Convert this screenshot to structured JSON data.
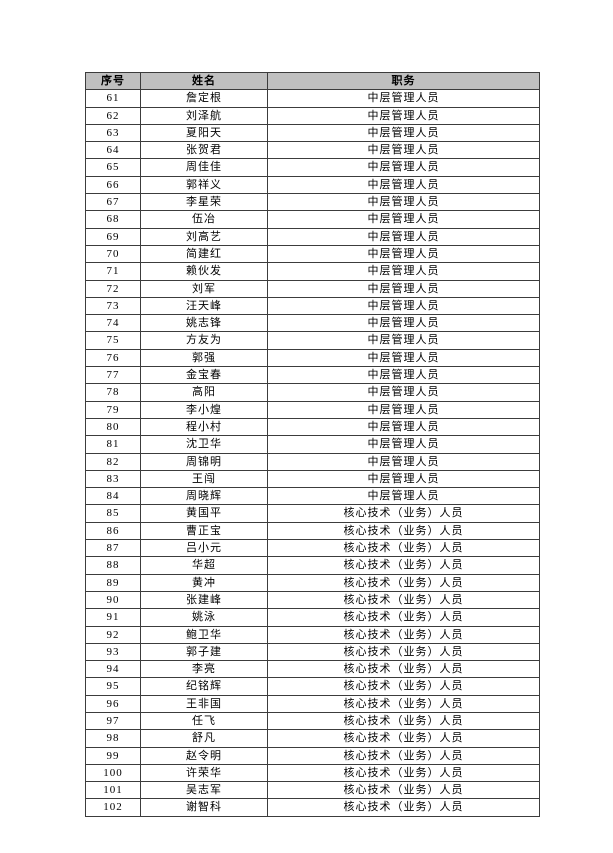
{
  "page": {
    "background": "#ffffff"
  },
  "table": {
    "header_bg": "#c0c0c0",
    "border_color": "#3c3c3c",
    "text_color": "#000000",
    "columns": [
      {
        "key": "serial",
        "label": "序号"
      },
      {
        "key": "name",
        "label": "姓名"
      },
      {
        "key": "title",
        "label": "职务"
      }
    ],
    "rows": [
      [
        "61",
        "詹定根",
        "中层管理人员"
      ],
      [
        "62",
        "刘泽航",
        "中层管理人员"
      ],
      [
        "63",
        "夏阳天",
        "中层管理人员"
      ],
      [
        "64",
        "张贺君",
        "中层管理人员"
      ],
      [
        "65",
        "周佳佳",
        "中层管理人员"
      ],
      [
        "66",
        "郭祥义",
        "中层管理人员"
      ],
      [
        "67",
        "李星荣",
        "中层管理人员"
      ],
      [
        "68",
        "伍冶",
        "中层管理人员"
      ],
      [
        "69",
        "刘高艺",
        "中层管理人员"
      ],
      [
        "70",
        "简建红",
        "中层管理人员"
      ],
      [
        "71",
        "赖伙发",
        "中层管理人员"
      ],
      [
        "72",
        "刘军",
        "中层管理人员"
      ],
      [
        "73",
        "汪天峰",
        "中层管理人员"
      ],
      [
        "74",
        "姚志锋",
        "中层管理人员"
      ],
      [
        "75",
        "方友为",
        "中层管理人员"
      ],
      [
        "76",
        "郭强",
        "中层管理人员"
      ],
      [
        "77",
        "金宝春",
        "中层管理人员"
      ],
      [
        "78",
        "高阳",
        "中层管理人员"
      ],
      [
        "79",
        "李小煌",
        "中层管理人员"
      ],
      [
        "80",
        "程小村",
        "中层管理人员"
      ],
      [
        "81",
        "沈卫华",
        "中层管理人员"
      ],
      [
        "82",
        "周锦明",
        "中层管理人员"
      ],
      [
        "83",
        "王闯",
        "中层管理人员"
      ],
      [
        "84",
        "周晓辉",
        "中层管理人员"
      ],
      [
        "85",
        "黄国平",
        "核心技术（业务）人员"
      ],
      [
        "86",
        "曹正宝",
        "核心技术（业务）人员"
      ],
      [
        "87",
        "吕小元",
        "核心技术（业务）人员"
      ],
      [
        "88",
        "华超",
        "核心技术（业务）人员"
      ],
      [
        "89",
        "黄冲",
        "核心技术（业务）人员"
      ],
      [
        "90",
        "张建峰",
        "核心技术（业务）人员"
      ],
      [
        "91",
        "姚泳",
        "核心技术（业务）人员"
      ],
      [
        "92",
        "鲍卫华",
        "核心技术（业务）人员"
      ],
      [
        "93",
        "郭子建",
        "核心技术（业务）人员"
      ],
      [
        "94",
        "李亮",
        "核心技术（业务）人员"
      ],
      [
        "95",
        "纪铭辉",
        "核心技术（业务）人员"
      ],
      [
        "96",
        "王非国",
        "核心技术（业务）人员"
      ],
      [
        "97",
        "任飞",
        "核心技术（业务）人员"
      ],
      [
        "98",
        "舒凡",
        "核心技术（业务）人员"
      ],
      [
        "99",
        "赵令明",
        "核心技术（业务）人员"
      ],
      [
        "100",
        "许荣华",
        "核心技术（业务）人员"
      ],
      [
        "101",
        "吴志军",
        "核心技术（业务）人员"
      ],
      [
        "102",
        "谢智科",
        "核心技术（业务）人员"
      ]
    ]
  }
}
